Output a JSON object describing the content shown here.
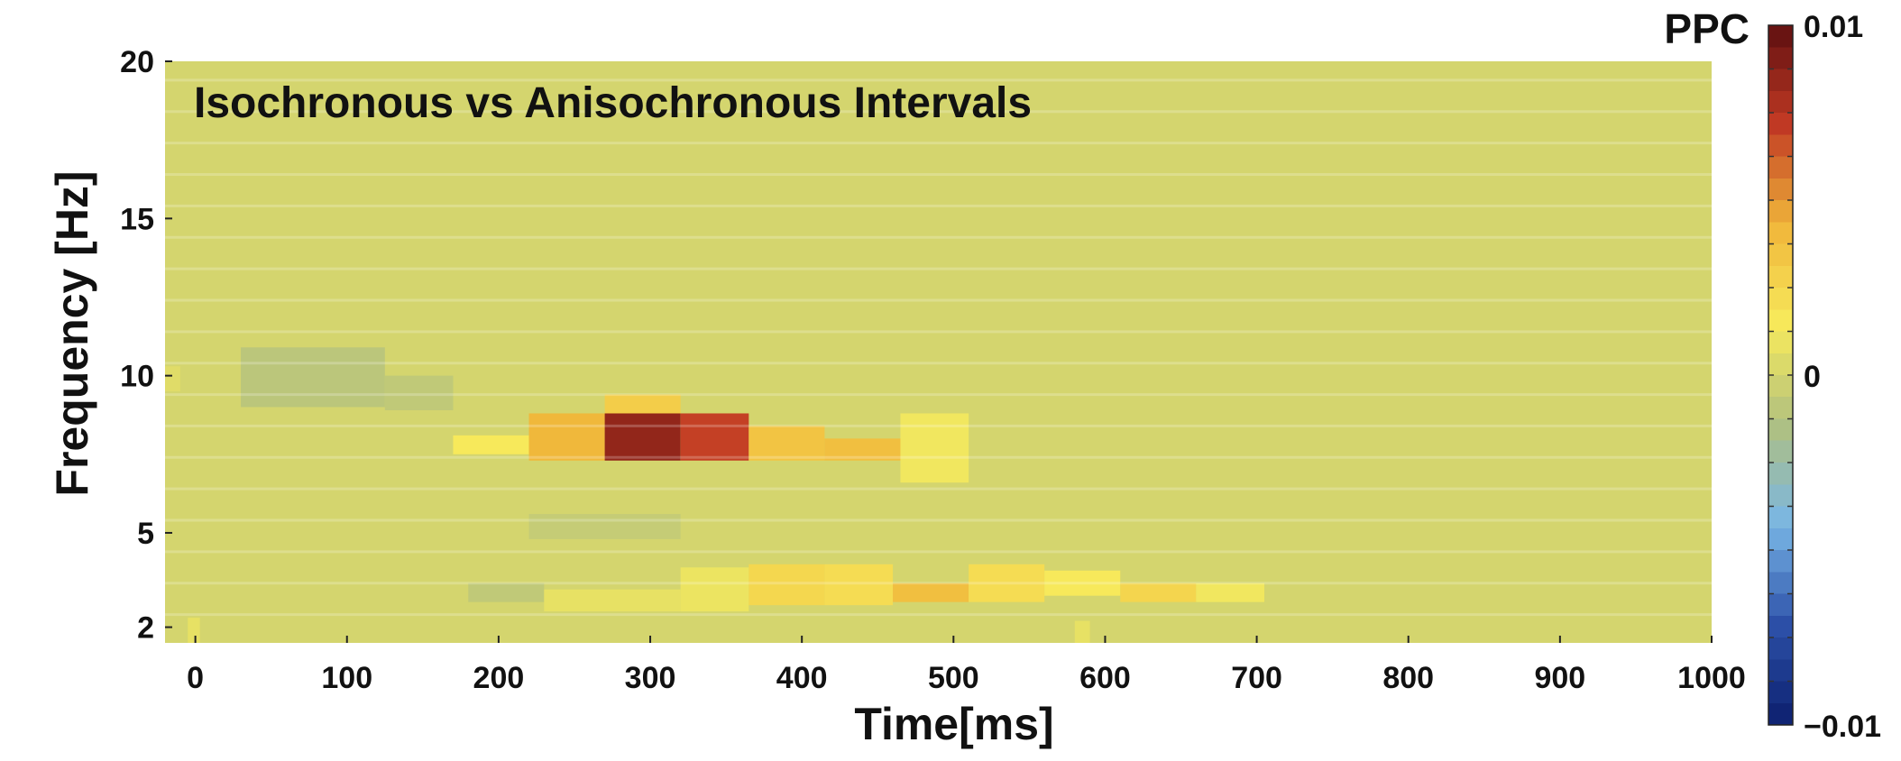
{
  "chart_data": {
    "type": "heatmap",
    "title": "Isochronous vs Anisochronous Intervals",
    "xlabel": "Time[ms]",
    "ylabel": "Frequency [Hz]",
    "xlim": [
      -20,
      1000
    ],
    "ylim": [
      1.5,
      20
    ],
    "x_ticks": [
      0,
      100,
      200,
      300,
      400,
      500,
      600,
      700,
      800,
      900,
      1000
    ],
    "y_ticks": [
      2,
      5,
      10,
      15,
      20
    ],
    "colorbar": {
      "label": "PPC",
      "range": [
        -0.01,
        0.01
      ],
      "ticks": [
        "0.01",
        "0",
        "−0.01"
      ],
      "colormap": [
        "#0c1f6e",
        "#2c50a8",
        "#79b6e6",
        "#b0c080",
        "#f7ea5c",
        "#f0b63a",
        "#c23a24",
        "#5e0f10"
      ]
    },
    "background_value": 0.0,
    "cells": [
      {
        "t": [
          30,
          125
        ],
        "f": [
          9.0,
          10.9
        ],
        "v": -0.001
      },
      {
        "t": [
          125,
          170
        ],
        "f": [
          8.9,
          10.0
        ],
        "v": -0.0008
      },
      {
        "t": [
          170,
          220
        ],
        "f": [
          7.5,
          8.1
        ],
        "v": 0.0015
      },
      {
        "t": [
          220,
          270
        ],
        "f": [
          7.3,
          8.8
        ],
        "v": 0.0042
      },
      {
        "t": [
          270,
          320
        ],
        "f": [
          8.5,
          9.4
        ],
        "v": 0.003
      },
      {
        "t": [
          270,
          320
        ],
        "f": [
          7.3,
          8.8
        ],
        "v": 0.0085
      },
      {
        "t": [
          320,
          365
        ],
        "f": [
          7.3,
          8.8
        ],
        "v": 0.007
      },
      {
        "t": [
          365,
          415
        ],
        "f": [
          7.3,
          8.4
        ],
        "v": 0.0035
      },
      {
        "t": [
          415,
          465
        ],
        "f": [
          7.3,
          8.0
        ],
        "v": 0.0038
      },
      {
        "t": [
          465,
          510
        ],
        "f": [
          6.6,
          8.8
        ],
        "v": 0.0012
      },
      {
        "t": [
          180,
          230
        ],
        "f": [
          2.8,
          3.4
        ],
        "v": -0.0008
      },
      {
        "t": [
          220,
          320
        ],
        "f": [
          4.8,
          5.6
        ],
        "v": -0.0006
      },
      {
        "t": [
          230,
          320
        ],
        "f": [
          2.5,
          3.2
        ],
        "v": 0.0008
      },
      {
        "t": [
          320,
          365
        ],
        "f": [
          2.5,
          3.9
        ],
        "v": 0.001
      },
      {
        "t": [
          365,
          415
        ],
        "f": [
          2.7,
          4.0
        ],
        "v": 0.0025
      },
      {
        "t": [
          415,
          460
        ],
        "f": [
          2.7,
          4.0
        ],
        "v": 0.0022
      },
      {
        "t": [
          460,
          510
        ],
        "f": [
          2.8,
          3.4
        ],
        "v": 0.0038
      },
      {
        "t": [
          510,
          560
        ],
        "f": [
          2.8,
          4.0
        ],
        "v": 0.0022
      },
      {
        "t": [
          560,
          610
        ],
        "f": [
          3.0,
          3.8
        ],
        "v": 0.0015
      },
      {
        "t": [
          610,
          660
        ],
        "f": [
          2.8,
          3.4
        ],
        "v": 0.0026
      },
      {
        "t": [
          660,
          705
        ],
        "f": [
          2.8,
          3.4
        ],
        "v": 0.0012
      },
      {
        "t": [
          -20,
          -10
        ],
        "f": [
          9.5,
          10.3
        ],
        "v": 0.0005
      },
      {
        "t": [
          -5,
          3
        ],
        "f": [
          1.5,
          2.3
        ],
        "v": 0.0008
      },
      {
        "t": [
          580,
          590
        ],
        "f": [
          1.5,
          2.2
        ],
        "v": 0.0008
      }
    ]
  }
}
